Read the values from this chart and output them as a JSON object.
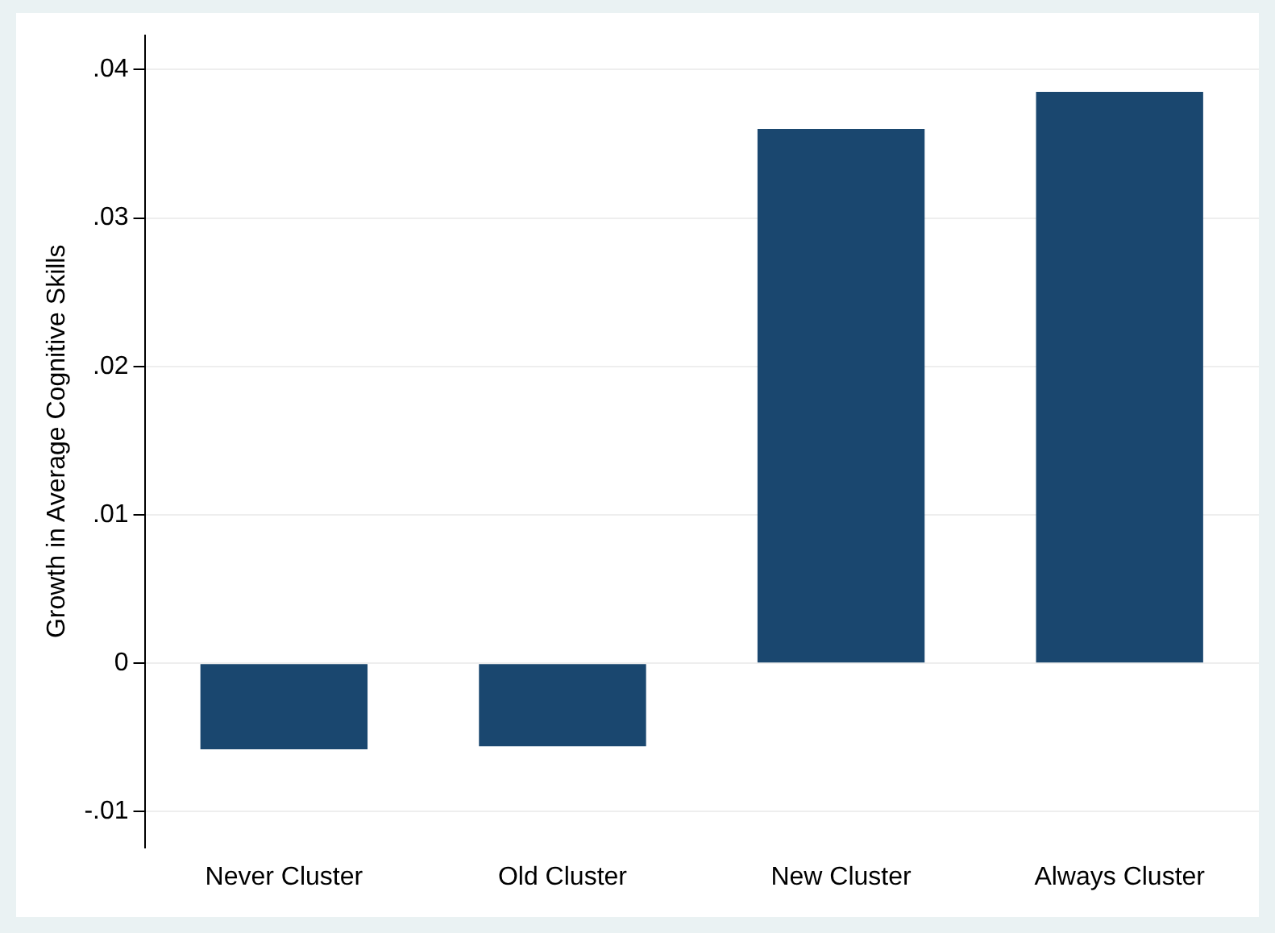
{
  "chart_data": {
    "type": "bar",
    "ylabel": "Growth in Average Cognitive Skills",
    "categories": [
      "Never Cluster",
      "Old Cluster",
      "New Cluster",
      "Always Cluster"
    ],
    "values": [
      -0.0058,
      -0.0056,
      0.036,
      0.0385
    ],
    "color": "#1a476f",
    "ylim": [
      -0.0124,
      0.0423
    ],
    "yticks": [
      {
        "value": -0.01,
        "label": "-.01"
      },
      {
        "value": 0,
        "label": "0"
      },
      {
        "value": 0.01,
        "label": ".01"
      },
      {
        "value": 0.02,
        "label": ".02"
      },
      {
        "value": 0.03,
        "label": ".03"
      },
      {
        "value": 0.04,
        "label": ".04"
      }
    ],
    "grid": "y"
  }
}
